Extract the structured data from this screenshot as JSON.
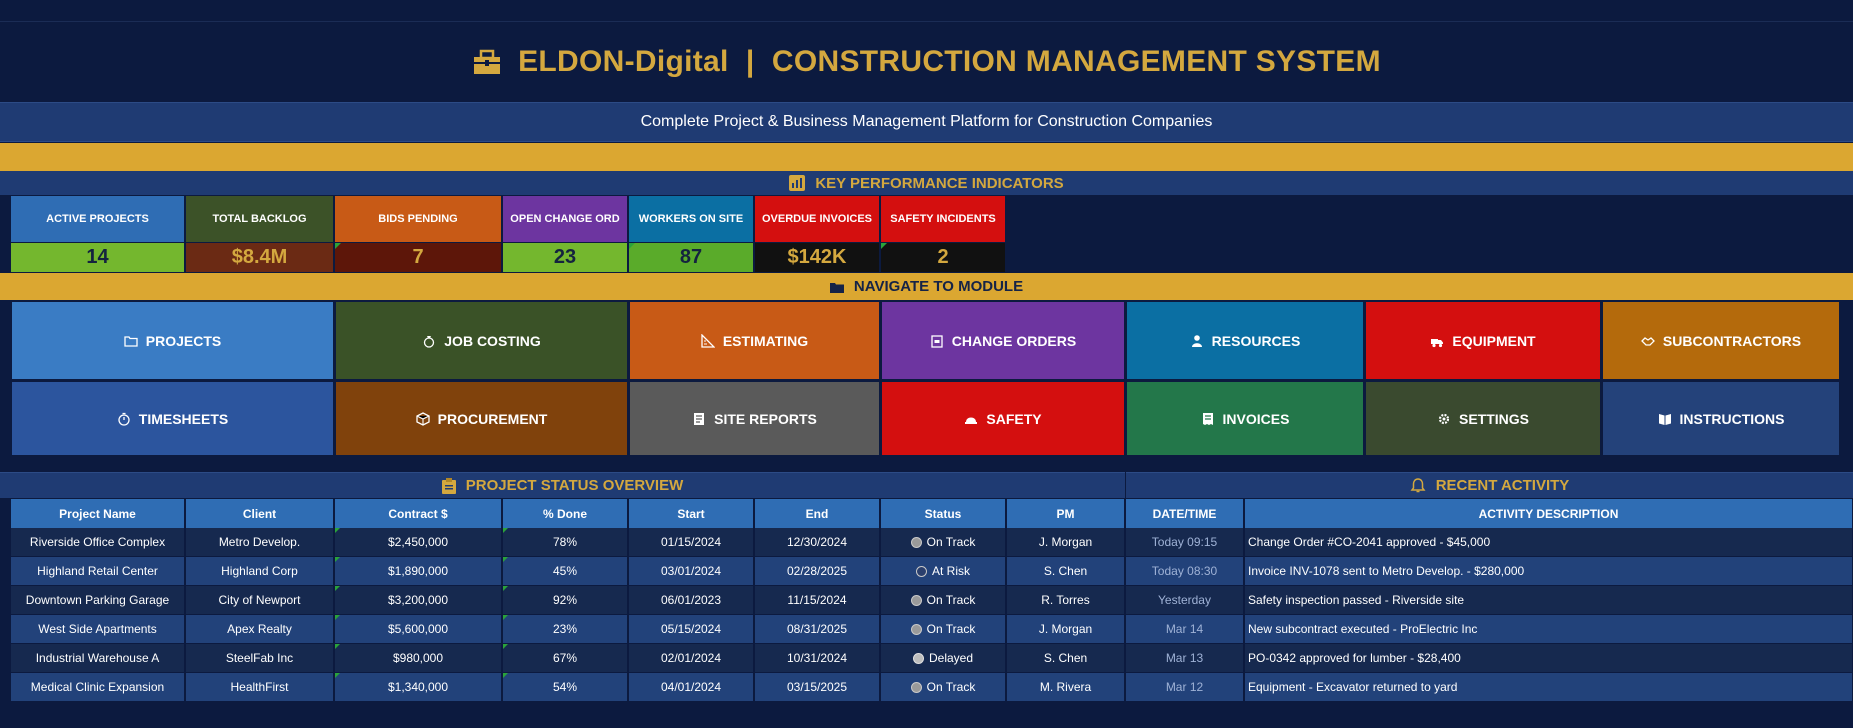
{
  "header": {
    "title": "ELDON-Digital  |  CONSTRUCTION MANAGEMENT SYSTEM",
    "subtitle": "Complete Project & Business Management Platform for Construction Companies",
    "icon": "toolbox-icon"
  },
  "kpi": {
    "section_title": "KEY PERFORMANCE INDICATORS",
    "section_icon": "chart-icon",
    "items": [
      {
        "label": "ACTIVE PROJECTS",
        "value": "14",
        "label_color": "#2f6db4",
        "value_color": "#74b72e",
        "value_text_color": "#14233f"
      },
      {
        "label": "TOTAL BACKLOG",
        "value": "$8.4M",
        "label_color": "#3c5228",
        "value_color": "#6b2a14",
        "value_text_color": "#d4a83f"
      },
      {
        "label": "BIDS PENDING",
        "value": "7",
        "label_color": "#c85a16",
        "value_color": "#5d1609",
        "value_text_color": "#d4a83f"
      },
      {
        "label": "OPEN CHANGE ORD",
        "value": "23",
        "label_color": "#6d35a0",
        "value_color": "#74b72e",
        "value_text_color": "#14233f"
      },
      {
        "label": "WORKERS ON SITE",
        "value": "87",
        "label_color": "#0b6fa3",
        "value_color": "#5aab2a",
        "value_text_color": "#14233f"
      },
      {
        "label": "OVERDUE INVOICES",
        "value": "$142K",
        "label_color": "#d40f0f",
        "value_color": "#111111",
        "value_text_color": "#d4a83f"
      },
      {
        "label": "SAFETY INCIDENTS",
        "value": "2",
        "label_color": "#d40f0f",
        "value_color": "#111111",
        "value_text_color": "#d4a83f"
      }
    ]
  },
  "nav": {
    "section_title": "NAVIGATE TO MODULE",
    "section_icon": "folder-icon",
    "row1": [
      {
        "label": "PROJECTS",
        "icon": "folder-icon",
        "color": "#3a7cc4"
      },
      {
        "label": "JOB COSTING",
        "icon": "money-bag-icon",
        "color": "#3a5227"
      },
      {
        "label": "ESTIMATING",
        "icon": "ruler-icon",
        "color": "#c85a16"
      },
      {
        "label": "CHANGE ORDERS",
        "icon": "clipboard-icon",
        "color": "#6d35a0"
      },
      {
        "label": "RESOURCES",
        "icon": "worker-icon",
        "color": "#0b6fa3"
      },
      {
        "label": "EQUIPMENT",
        "icon": "truck-icon",
        "color": "#d40f0f"
      },
      {
        "label": "SUBCONTRACTORS",
        "icon": "handshake-icon",
        "color": "#b46a0c"
      }
    ],
    "row2": [
      {
        "label": "TIMESHEETS",
        "icon": "stopwatch-icon",
        "color": "#2c559e"
      },
      {
        "label": "PROCUREMENT",
        "icon": "package-icon",
        "color": "#80420c"
      },
      {
        "label": "SITE REPORTS",
        "icon": "report-icon",
        "color": "#5a5a5a"
      },
      {
        "label": "SAFETY",
        "icon": "hard-hat-icon",
        "color": "#d40f0f"
      },
      {
        "label": "INVOICES",
        "icon": "receipt-icon",
        "color": "#23774a"
      },
      {
        "label": "SETTINGS",
        "icon": "gear-icon",
        "color": "#3a4a2f"
      },
      {
        "label": "INSTRUCTIONS",
        "icon": "book-icon",
        "color": "#24427a"
      }
    ]
  },
  "projects": {
    "title": "PROJECT STATUS OVERVIEW",
    "icon": "clipboard-icon",
    "columns": [
      "Project Name",
      "Client",
      "Contract $",
      "% Done",
      "Start",
      "End",
      "Status",
      "PM"
    ],
    "rows": [
      [
        "Riverside Office Complex",
        "Metro Develop.",
        "$2,450,000",
        "78%",
        "01/15/2024",
        "12/30/2024",
        "On Track",
        "J. Morgan"
      ],
      [
        "Highland Retail Center",
        "Highland Corp",
        "$1,890,000",
        "45%",
        "03/01/2024",
        "02/28/2025",
        "At Risk",
        "S. Chen"
      ],
      [
        "Downtown Parking Garage",
        "City of Newport",
        "$3,200,000",
        "92%",
        "06/01/2023",
        "11/15/2024",
        "On Track",
        "R. Torres"
      ],
      [
        "West Side Apartments",
        "Apex Realty",
        "$5,600,000",
        "23%",
        "05/15/2024",
        "08/31/2025",
        "On Track",
        "J. Morgan"
      ],
      [
        "Industrial Warehouse A",
        "SteelFab Inc",
        "$980,000",
        "67%",
        "02/01/2024",
        "10/31/2024",
        "Delayed",
        "S. Chen"
      ],
      [
        "Medical Clinic Expansion",
        "HealthFirst",
        "$1,340,000",
        "54%",
        "04/01/2024",
        "03/15/2025",
        "On Track",
        "M. Rivera"
      ]
    ]
  },
  "activity": {
    "title": "RECENT ACTIVITY",
    "icon": "bell-icon",
    "columns": [
      "DATE/TIME",
      "ACTIVITY DESCRIPTION"
    ],
    "rows": [
      [
        "Today 09:15",
        "Change Order #CO-2041 approved - $45,000"
      ],
      [
        "Today 08:30",
        "Invoice INV-1078 sent to Metro Develop. - $280,000"
      ],
      [
        "Yesterday",
        "Safety inspection passed - Riverside site"
      ],
      [
        "Mar 14",
        "New subcontract executed - ProElectric Inc"
      ],
      [
        "Mar 13",
        "PO-0342 approved for lumber - $28,400"
      ],
      [
        "Mar 12",
        "Equipment - Excavator returned to yard"
      ]
    ]
  },
  "colors": {
    "background": "#0c1a3f",
    "gold": "#dba731",
    "title_gold": "#d4a83f",
    "row_dark": "#16294f",
    "row_light": "#22427a",
    "header_blue": "#2f6db4"
  }
}
